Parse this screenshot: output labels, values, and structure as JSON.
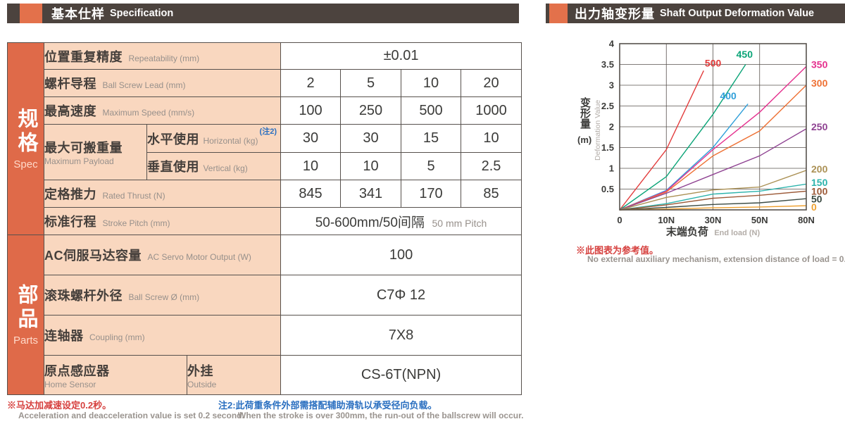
{
  "spec": {
    "header": {
      "title_cn": "基本仕样",
      "title_en": "Specification"
    },
    "groups": {
      "spec": {
        "cn": "规格",
        "en": "Spec"
      },
      "parts": {
        "cn": "部品",
        "en": "Parts"
      }
    },
    "rows": {
      "repeatability": {
        "cn": "位置重复精度",
        "en": "Repeatability (mm)",
        "value": "±0.01"
      },
      "lead": {
        "cn": "螺杆导程",
        "en": "Ball Screw Lead (mm)",
        "values": [
          "2",
          "5",
          "10",
          "20"
        ]
      },
      "speed": {
        "cn": "最高速度",
        "en": "Maximum Speed (mm/s)",
        "values": [
          "100",
          "250",
          "500",
          "1000"
        ]
      },
      "payload": {
        "cn": "最大可搬重量",
        "en": "Maximum Payload",
        "horizontal": {
          "cn": "水平使用",
          "en": "Horizontal (kg)",
          "note": "(注2)",
          "values": [
            "30",
            "30",
            "15",
            "10"
          ]
        },
        "vertical": {
          "cn": "垂直使用",
          "en": "Vertical (kg)",
          "values": [
            "10",
            "10",
            "5",
            "2.5"
          ]
        }
      },
      "thrust": {
        "cn": "定格推力",
        "en": "Rated Thrust (N)",
        "values": [
          "845",
          "341",
          "170",
          "85"
        ]
      },
      "stroke": {
        "cn": "标准行程",
        "en": "Stroke Pitch (mm)",
        "value_cn": "50-600mm/50间隔",
        "value_en": "50 mm Pitch"
      },
      "motor": {
        "cn": "AC伺服马达容量",
        "en": "AC Servo Motor Output (W)",
        "value": "100"
      },
      "screw": {
        "cn": "滚珠螺杆外径",
        "en": "Ball Screw Ø (mm)",
        "value": "C7Φ 12"
      },
      "coupling": {
        "cn": "连轴器",
        "en": "Coupling (mm)",
        "value": "7X8"
      },
      "sensor": {
        "cn": "原点感应器",
        "en": "Home Sensor",
        "sub_cn": "外挂",
        "sub_en": "Outside",
        "value": "CS-6T(NPN)"
      }
    },
    "footnotes": {
      "red_cn": "※马达加减速设定0.2秒。",
      "red_en": "Acceleration and deacceleration value is set 0.2 second.",
      "blue_cn": "注2:此荷重条件外部需搭配辅助滑轨以承受径向负载。",
      "blue_en": "When the stroke is over 300mm, the run-out of the ballscrew will occur."
    }
  },
  "chart_section": {
    "header": {
      "title_cn": "出力轴变形量",
      "title_en": "Shaft Output Deformation Value"
    },
    "footnote_cn": "※此图表为参考值。",
    "footnote_en": "No external auxiliary mechanism, extension distance of load = 0."
  },
  "chart_data": {
    "type": "line",
    "title": "出力轴变形量 Shaft Output Deformation Value",
    "xlabel_cn": "末端负荷",
    "xlabel_en": "End load (N)",
    "ylabel_cn": "变形量",
    "ylabel_unit": "(m)",
    "ylabel_en": "Deformation Value",
    "x_ticks": [
      0,
      10,
      30,
      50,
      80
    ],
    "x_tick_labels": [
      "0",
      "10N",
      "30N",
      "50N",
      "80N"
    ],
    "ylim": [
      0,
      4
    ],
    "y_tick_step": 0.5,
    "grid": true,
    "legend_position": "right-of-line-ends",
    "series": [
      {
        "name": "500",
        "color": "#e23c3c",
        "points": [
          [
            0,
            0
          ],
          [
            10,
            1.45
          ],
          [
            26,
            3.35
          ]
        ],
        "label_at": [
          26.5,
          3.45
        ],
        "label_anchor": "start"
      },
      {
        "name": "450",
        "color": "#0aa477",
        "points": [
          [
            0,
            0
          ],
          [
            10,
            0.8
          ],
          [
            30,
            2.3
          ],
          [
            44,
            3.5
          ]
        ],
        "label_at": [
          40,
          3.66
        ],
        "label_anchor": "start"
      },
      {
        "name": "400",
        "color": "#2f9fd9",
        "points": [
          [
            0,
            0
          ],
          [
            10,
            0.47
          ],
          [
            30,
            1.5
          ],
          [
            45,
            2.55
          ]
        ],
        "label_at": [
          33,
          2.66
        ],
        "label_anchor": "start"
      },
      {
        "name": "350",
        "color": "#e5308e",
        "points": [
          [
            0,
            0
          ],
          [
            10,
            0.45
          ],
          [
            30,
            1.45
          ],
          [
            50,
            2.35
          ],
          [
            80,
            3.45
          ]
        ],
        "label_value": 3.5
      },
      {
        "name": "300",
        "color": "#ee7134",
        "points": [
          [
            0,
            0
          ],
          [
            10,
            0.43
          ],
          [
            30,
            1.3
          ],
          [
            50,
            1.9
          ],
          [
            80,
            3.0
          ]
        ],
        "label_value": 3.05
      },
      {
        "name": "250",
        "color": "#8e4191",
        "points": [
          [
            0,
            0
          ],
          [
            10,
            0.4
          ],
          [
            30,
            0.85
          ],
          [
            50,
            1.3
          ],
          [
            80,
            1.95
          ]
        ],
        "label_value": 2.0
      },
      {
        "name": "200",
        "color": "#ab9155",
        "points": [
          [
            0,
            0
          ],
          [
            10,
            0.3
          ],
          [
            30,
            0.48
          ],
          [
            50,
            0.55
          ],
          [
            80,
            0.95
          ]
        ],
        "label_value": 0.98
      },
      {
        "name": "150",
        "color": "#2cb3ac",
        "points": [
          [
            0,
            0
          ],
          [
            10,
            0.15
          ],
          [
            30,
            0.38
          ],
          [
            50,
            0.45
          ],
          [
            80,
            0.62
          ]
        ],
        "label_value": 0.66
      },
      {
        "name": "100",
        "color": "#9c5a38",
        "points": [
          [
            0,
            0
          ],
          [
            10,
            0.12
          ],
          [
            30,
            0.28
          ],
          [
            50,
            0.35
          ],
          [
            80,
            0.45
          ]
        ],
        "label_value": 0.45
      },
      {
        "name": "50",
        "color": "#3c4b43",
        "points": [
          [
            0,
            0
          ],
          [
            10,
            0.06
          ],
          [
            30,
            0.13
          ],
          [
            50,
            0.17
          ],
          [
            80,
            0.27
          ]
        ],
        "label_value": 0.26
      },
      {
        "name": "0",
        "color": "#eea02f",
        "points": [
          [
            0,
            0
          ],
          [
            10,
            0.02
          ],
          [
            30,
            0.05
          ],
          [
            50,
            0.07
          ],
          [
            80,
            0.1
          ]
        ],
        "label_value": 0.07
      }
    ]
  }
}
